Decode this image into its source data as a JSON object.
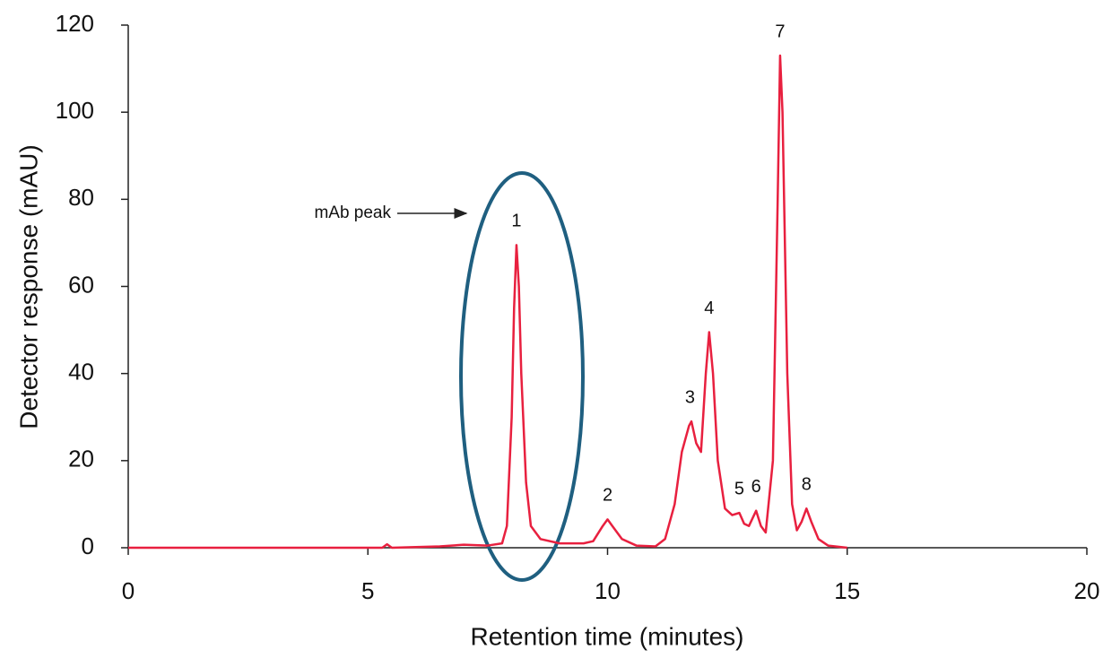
{
  "chart_data": {
    "type": "line",
    "x_label": "Retention time (minutes)",
    "y_label": "Detector response (mAU)",
    "x": [
      0,
      5.3,
      5.4,
      5.5,
      6.5,
      7.0,
      7.5,
      7.8,
      7.9,
      8.0,
      8.05,
      8.1,
      8.15,
      8.2,
      8.3,
      8.4,
      8.6,
      9.0,
      9.5,
      9.7,
      9.9,
      10.0,
      10.1,
      10.3,
      10.6,
      11.0,
      11.2,
      11.4,
      11.55,
      11.7,
      11.75,
      11.85,
      11.95,
      12.05,
      12.12,
      12.2,
      12.3,
      12.45,
      12.6,
      12.75,
      12.85,
      12.95,
      13.1,
      13.2,
      13.3,
      13.45,
      13.55,
      13.6,
      13.65,
      13.75,
      13.85,
      13.95,
      14.05,
      14.15,
      14.25,
      14.4,
      14.6,
      15
    ],
    "series": [
      {
        "color": "#e8203f",
        "values": [
          0,
          0,
          0.8,
          0,
          0.3,
          0.7,
          0.5,
          1,
          5,
          30,
          55,
          69.5,
          60,
          40,
          15,
          5,
          2,
          1,
          1,
          1.5,
          5,
          6.5,
          5,
          2,
          0.5,
          0.3,
          2,
          10,
          22,
          28,
          29,
          24,
          22,
          40,
          49.5,
          40,
          20,
          9,
          7.5,
          8,
          5.5,
          5,
          8.5,
          5,
          3.5,
          20,
          80,
          113,
          100,
          40,
          10,
          4,
          6,
          9,
          6,
          2,
          0.5,
          0
        ]
      }
    ],
    "peaks": [
      {
        "label": "1",
        "x": 8.1,
        "y": 69.5
      },
      {
        "label": "2",
        "x": 10.0,
        "y": 6.5
      },
      {
        "label": "3",
        "x": 11.72,
        "y": 29
      },
      {
        "label": "4",
        "x": 12.12,
        "y": 49.5
      },
      {
        "label": "5",
        "x": 12.75,
        "y": 8
      },
      {
        "label": "6",
        "x": 13.1,
        "y": 8.5
      },
      {
        "label": "7",
        "x": 13.6,
        "y": 113
      },
      {
        "label": "8",
        "x": 14.15,
        "y": 9
      }
    ],
    "annotation": "mAb peak",
    "xlim": [
      0,
      20
    ],
    "xticks": [
      0,
      5,
      10,
      15,
      20
    ],
    "ylim": [
      0,
      120
    ],
    "yticks": [
      0,
      20,
      40,
      60,
      80,
      100,
      120
    ],
    "grid": false
  }
}
